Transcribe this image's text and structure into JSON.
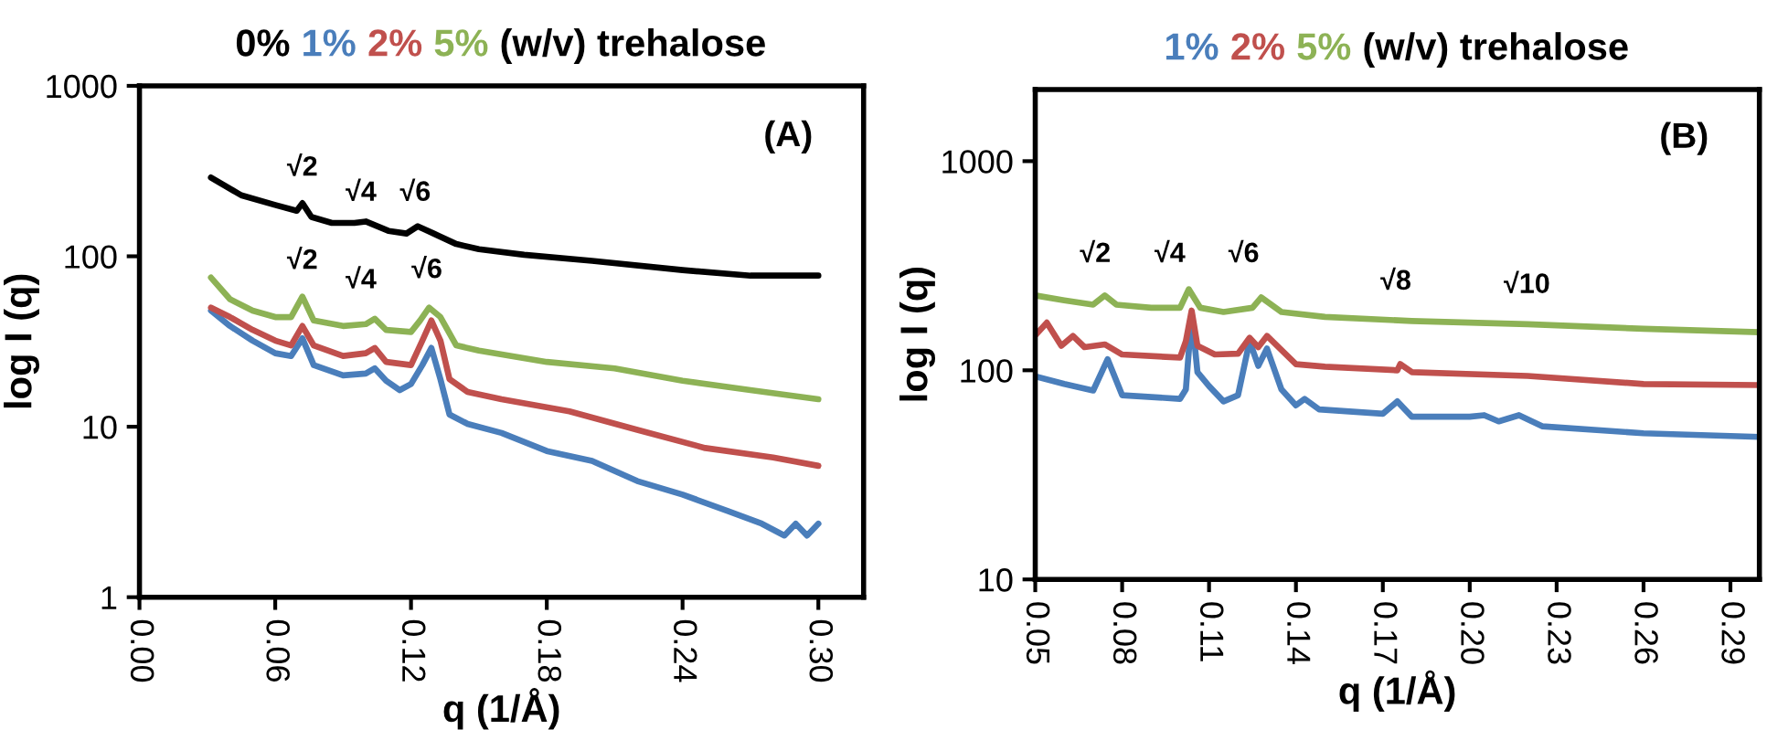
{
  "chart_data": [
    {
      "type": "line",
      "title": "(w/v) trehalose",
      "xlabel": "q (1/Å)",
      "ylabel": "log I (q)",
      "log": "y",
      "legend": "top",
      "grid": false,
      "xlim": [
        0,
        0.32
      ],
      "ylim": [
        1,
        1000
      ],
      "xticks": [
        {
          "value": 0,
          "label": "0.00"
        },
        {
          "value": 0.06,
          "label": "0.06"
        },
        {
          "value": 0.12,
          "label": "0.12"
        },
        {
          "value": 0.18,
          "label": "0.18"
        },
        {
          "value": 0.24,
          "label": "0.24"
        },
        {
          "value": 0.3,
          "label": "0.30"
        }
      ],
      "yticks": [
        1,
        10,
        100,
        1000
      ],
      "annotations": [
        "(A)",
        "√2",
        "√4",
        "√6",
        "√2",
        "√4",
        "√6"
      ],
      "series": [
        {
          "name": "0%",
          "color": "#000000",
          "x": [
            0.0316,
            0.045,
            0.06,
            0.0695,
            0.072,
            0.076,
            0.085,
            0.095,
            0.1,
            0.11,
            0.118,
            0.123,
            0.13,
            0.14,
            0.15,
            0.17,
            0.2,
            0.24,
            0.27,
            0.3
          ],
          "values": [
            290,
            228,
            200,
            185,
            205,
            170,
            157,
            157,
            160,
            141,
            136,
            150,
            136,
            118,
            110,
            102,
            94,
            83,
            77,
            77
          ]
        },
        {
          "name": "1%",
          "color": "#4a7ebb",
          "x": [
            0.0316,
            0.04,
            0.05,
            0.06,
            0.067,
            0.072,
            0.077,
            0.09,
            0.1,
            0.104,
            0.109,
            0.115,
            0.12,
            0.125,
            0.129,
            0.133,
            0.137,
            0.145,
            0.16,
            0.18,
            0.2,
            0.22,
            0.24,
            0.26,
            0.275,
            0.285,
            0.29,
            0.295,
            0.3
          ],
          "values": [
            48,
            39,
            32,
            27,
            26,
            33,
            23,
            20,
            20.5,
            22,
            18.6,
            16.4,
            17.8,
            23,
            29,
            19,
            11.8,
            10.4,
            9.2,
            7.2,
            6.3,
            4.8,
            4.0,
            3.2,
            2.7,
            2.3,
            2.7,
            2.3,
            2.7
          ]
        },
        {
          "name": "2%",
          "color": "#c0504d",
          "x": [
            0.0316,
            0.04,
            0.05,
            0.06,
            0.067,
            0.072,
            0.077,
            0.09,
            0.1,
            0.104,
            0.109,
            0.12,
            0.125,
            0.129,
            0.133,
            0.137,
            0.145,
            0.16,
            0.19,
            0.22,
            0.25,
            0.28,
            0.3
          ],
          "values": [
            50,
            44,
            37,
            32,
            30,
            39,
            30,
            26,
            27,
            29,
            24,
            23,
            32,
            42,
            32,
            19,
            16,
            14.5,
            12.3,
            9.6,
            7.5,
            6.6,
            5.9
          ]
        },
        {
          "name": "5%",
          "color": "#8db255",
          "x": [
            0.0316,
            0.04,
            0.05,
            0.06,
            0.067,
            0.072,
            0.077,
            0.09,
            0.1,
            0.104,
            0.109,
            0.12,
            0.124,
            0.128,
            0.133,
            0.14,
            0.15,
            0.18,
            0.21,
            0.24,
            0.27,
            0.3
          ],
          "values": [
            75,
            56,
            48,
            44,
            44,
            58,
            42,
            39,
            40,
            43,
            37,
            36,
            42,
            50,
            44,
            30,
            28,
            24,
            22,
            18.6,
            16.4,
            14.5
          ]
        }
      ]
    },
    {
      "type": "line",
      "title": "(w/v) trehalose",
      "xlabel": "q (1/Å)",
      "ylabel": "log I (q)",
      "log": "y",
      "legend": "top",
      "grid": false,
      "xlim": [
        0.05,
        0.3
      ],
      "ylim": [
        10,
        2200
      ],
      "xticks": [
        {
          "value": 0.05,
          "label": "0.05"
        },
        {
          "value": 0.08,
          "label": "0.08"
        },
        {
          "value": 0.11,
          "label": "0.11"
        },
        {
          "value": 0.14,
          "label": "0.14"
        },
        {
          "value": 0.17,
          "label": "0.17"
        },
        {
          "value": 0.2,
          "label": "0.20"
        },
        {
          "value": 0.23,
          "label": "0.23"
        },
        {
          "value": 0.26,
          "label": "0.26"
        },
        {
          "value": 0.29,
          "label": "0.29"
        }
      ],
      "yticks": [
        10,
        100,
        1000
      ],
      "annotations": [
        "(B)",
        "√2",
        "√4",
        "√6",
        "√8",
        "√10"
      ],
      "series": [
        {
          "name": "1%",
          "color": "#4a7ebb",
          "x": [
            0.05,
            0.06,
            0.07,
            0.075,
            0.08,
            0.1,
            0.102,
            0.104,
            0.106,
            0.11,
            0.115,
            0.12,
            0.124,
            0.127,
            0.13,
            0.135,
            0.14,
            0.143,
            0.148,
            0.17,
            0.175,
            0.18,
            0.2,
            0.205,
            0.21,
            0.217,
            0.225,
            0.26,
            0.3
          ],
          "values": [
            93.5,
            86,
            80,
            113,
            76,
            73,
            81,
            186,
            98,
            84,
            71,
            76,
            138,
            105,
            127,
            81,
            68,
            73,
            65,
            62,
            71,
            60,
            60,
            61,
            57,
            61,
            54,
            50,
            48
          ]
        },
        {
          "name": "2%",
          "color": "#c0504d",
          "x": [
            0.05,
            0.054,
            0.059,
            0.063,
            0.067,
            0.074,
            0.08,
            0.1,
            0.102,
            0.104,
            0.106,
            0.112,
            0.12,
            0.124,
            0.127,
            0.13,
            0.14,
            0.15,
            0.175,
            0.176,
            0.18,
            0.22,
            0.26,
            0.3
          ],
          "values": [
            147,
            169,
            131,
            146,
            129,
            133,
            119,
            115,
            138,
            193,
            131,
            119,
            120,
            143,
            129,
            146,
            107,
            104,
            100,
            107,
            98,
            94,
            86,
            85
          ]
        },
        {
          "name": "5%",
          "color": "#8db255",
          "x": [
            0.05,
            0.06,
            0.07,
            0.074,
            0.078,
            0.09,
            0.1,
            0.103,
            0.107,
            0.115,
            0.125,
            0.128,
            0.135,
            0.15,
            0.18,
            0.22,
            0.26,
            0.3
          ],
          "values": [
            228,
            216,
            206,
            228,
            206,
            199,
            199,
            244,
            199,
            190,
            199,
            223,
            190,
            180,
            172,
            166,
            158,
            152
          ]
        }
      ]
    }
  ]
}
